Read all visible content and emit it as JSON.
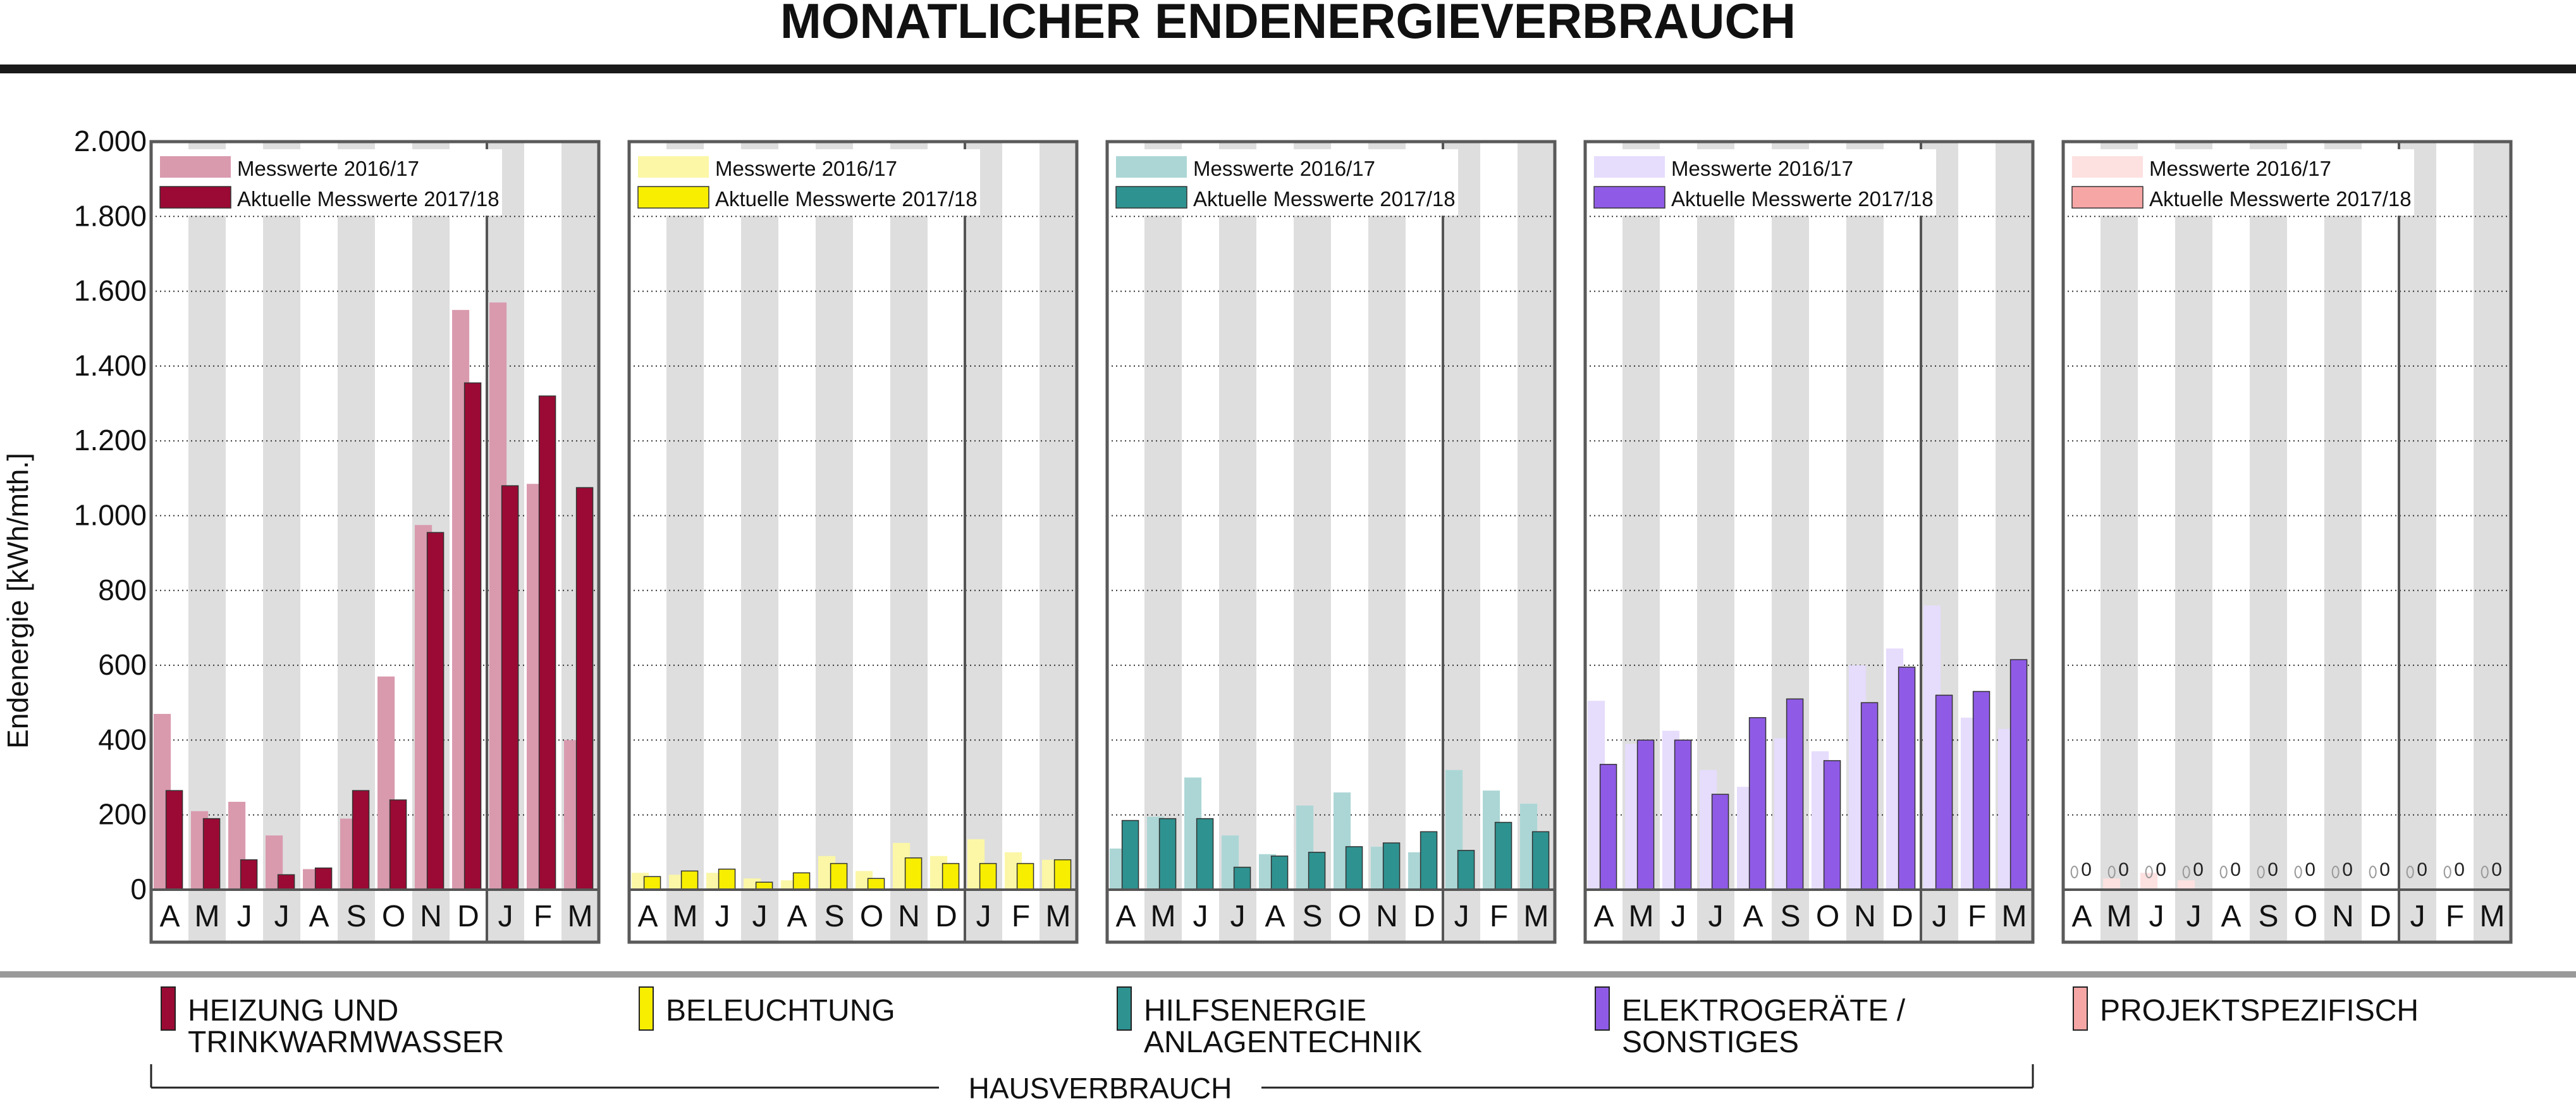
{
  "chart_data": {
    "type": "bar",
    "title": "MONATLICHER ENDENERGIEVERBRAUCH",
    "ylabel": "Endenergie [kWh/mth.]",
    "ylim": [
      0,
      2000
    ],
    "yticks": [
      0,
      200,
      400,
      600,
      800,
      1000,
      1200,
      1400,
      1600,
      1800,
      2000
    ],
    "ytick_labels": [
      "0",
      "200",
      "400",
      "600",
      "800",
      "1.000",
      "1.200",
      "1.400",
      "1.600",
      "1.800",
      "2.000"
    ],
    "categories": [
      "A",
      "M",
      "J",
      "J",
      "A",
      "S",
      "O",
      "N",
      "D",
      "J",
      "F",
      "M"
    ],
    "panels": [
      {
        "name": "HEIZUNG UND TRINKWARMWASSER",
        "legend_title_lines": [
          "HEIZUNG UND",
          "TRINKWARMWASSER"
        ],
        "colors": {
          "previous": "#d99aae",
          "current": "#9b0a34",
          "legend": "#9b0a34"
        },
        "series": [
          {
            "name": "Messwerte 2016/17",
            "values": [
              470,
              210,
              235,
              145,
              55,
              190,
              570,
              975,
              1550,
              1570,
              1085,
              400
            ]
          },
          {
            "name": "Aktuelle Messwerte 2017/18",
            "values": [
              265,
              190,
              80,
              40,
              58,
              265,
              240,
              955,
              1355,
              1080,
              1320,
              1075
            ]
          }
        ]
      },
      {
        "name": "BELEUCHTUNG",
        "legend_title_lines": [
          "BELEUCHTUNG"
        ],
        "colors": {
          "previous": "#fbf7a6",
          "current": "#f7ee00",
          "legend": "#f7ee00"
        },
        "series": [
          {
            "name": "Messwerte 2016/17",
            "values": [
              45,
              40,
              45,
              30,
              25,
              90,
              50,
              125,
              90,
              135,
              100,
              80
            ]
          },
          {
            "name": "Aktuelle Messwerte 2017/18",
            "values": [
              35,
              50,
              55,
              20,
              45,
              70,
              30,
              85,
              70,
              70,
              70,
              80
            ]
          }
        ]
      },
      {
        "name": "HILFSENERGIE ANLAGENTECHNIK",
        "legend_title_lines": [
          "HILFSENERGIE",
          "ANLAGENTECHNIK"
        ],
        "colors": {
          "previous": "#acd6d6",
          "current": "#2e9290",
          "legend": "#2e9290"
        },
        "series": [
          {
            "name": "Messwerte 2016/17",
            "values": [
              110,
              195,
              300,
              145,
              95,
              225,
              260,
              115,
              100,
              320,
              265,
              230
            ]
          },
          {
            "name": "Aktuelle Messwerte 2017/18",
            "values": [
              185,
              190,
              190,
              60,
              90,
              100,
              115,
              125,
              155,
              105,
              180,
              155
            ]
          }
        ]
      },
      {
        "name": "ELEKTROGERÄTE / SONSTIGES",
        "legend_title_lines": [
          "ELEKTROGERÄTE /",
          "SONSTIGES"
        ],
        "colors": {
          "previous": "#e6dcfc",
          "current": "#8f5be6",
          "legend": "#8f5be6"
        },
        "series": [
          {
            "name": "Messwerte 2016/17",
            "values": [
              505,
              390,
              425,
              320,
              275,
              405,
              370,
              600,
              645,
              760,
              460,
              430
            ]
          },
          {
            "name": "Aktuelle Messwerte 2017/18",
            "values": [
              335,
              400,
              400,
              255,
              460,
              510,
              345,
              500,
              595,
              520,
              530,
              615
            ]
          }
        ]
      },
      {
        "name": "PROJEKTSPEZIFISCH",
        "legend_title_lines": [
          "PROJEKTSPEZIFISCH"
        ],
        "colors": {
          "previous": "#fde0e0",
          "current": "#f7a6a6",
          "legend": "#f7a6a6"
        },
        "series": [
          {
            "name": "Messwerte 2016/17",
            "values": [
              0,
              30,
              45,
              25,
              0,
              0,
              0,
              0,
              0,
              0,
              0,
              0
            ]
          },
          {
            "name": "Aktuelle Messwerte 2017/18",
            "values": [
              0,
              0,
              0,
              0,
              0,
              0,
              0,
              0,
              0,
              0,
              0,
              0
            ]
          }
        ],
        "value_labels": [
          "0",
          "0",
          "0",
          "0",
          "0",
          "0",
          "0",
          "0",
          "0",
          "0",
          "0",
          "0"
        ]
      }
    ],
    "bracket_label": "HAUSVERBRAUCH",
    "grid": true
  }
}
